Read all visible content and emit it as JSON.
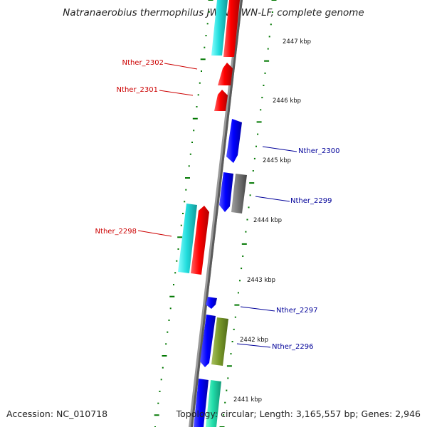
{
  "title": "Natranaerobius thermophilus JW/NM-WN-LF, complete genome",
  "footer": {
    "accession": "Accession: NC_010718",
    "summary": "Topology: circular; Length: 3,165,557 bp; Genes: 2,946"
  },
  "colors": {
    "forward_label": "#cc0000",
    "reverse_label": "#000099",
    "tick": "#007700",
    "backbone": "#888888"
  },
  "scale_labels": [
    "2447 kbp",
    "2446 kbp",
    "2445 kbp",
    "2444 kbp",
    "2443 kbp",
    "2442 kbp",
    "2441 kbp"
  ],
  "gene_labels": [
    "Nther_2302",
    "Nther_2301",
    "Nther_2300",
    "Nther_2299",
    "Nther_2298",
    "Nther_2297",
    "Nther_2296"
  ]
}
